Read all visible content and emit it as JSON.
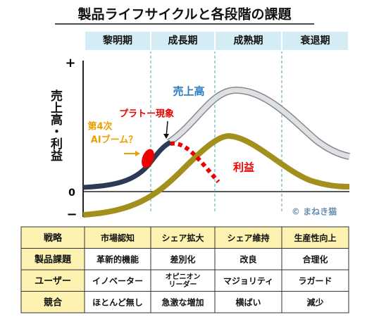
{
  "header": {
    "title": "製品ライフサイクルと各段階の課題"
  },
  "phases": [
    "黎明期",
    "成長期",
    "成熟期",
    "衰退期"
  ],
  "axis": {
    "label": "売上高・利益",
    "plus": "+",
    "zero": "0",
    "minus": "−"
  },
  "curves": {
    "sales": "売上高",
    "profit": "利益"
  },
  "annotations": {
    "plateau": "プラトー現象",
    "ai_boom": [
      "第4次",
      "AIブーム？"
    ],
    "copyright": "© まねき猫"
  },
  "table": {
    "rows": [
      [
        "戦略",
        "市場認知",
        "シェア拡大",
        "シェア維持",
        "生産性向上"
      ],
      [
        "製品課題",
        "革新的機能",
        "差別化",
        "改良",
        "合理化"
      ],
      [
        "ユーザー",
        "イノベーター",
        [
          "オピニオン",
          "リーダー"
        ],
        "マジョリティ",
        "ラガード"
      ],
      [
        "競合",
        "ほとんど無し",
        "急激な増加",
        "横ばい",
        "減少"
      ]
    ]
  }
}
